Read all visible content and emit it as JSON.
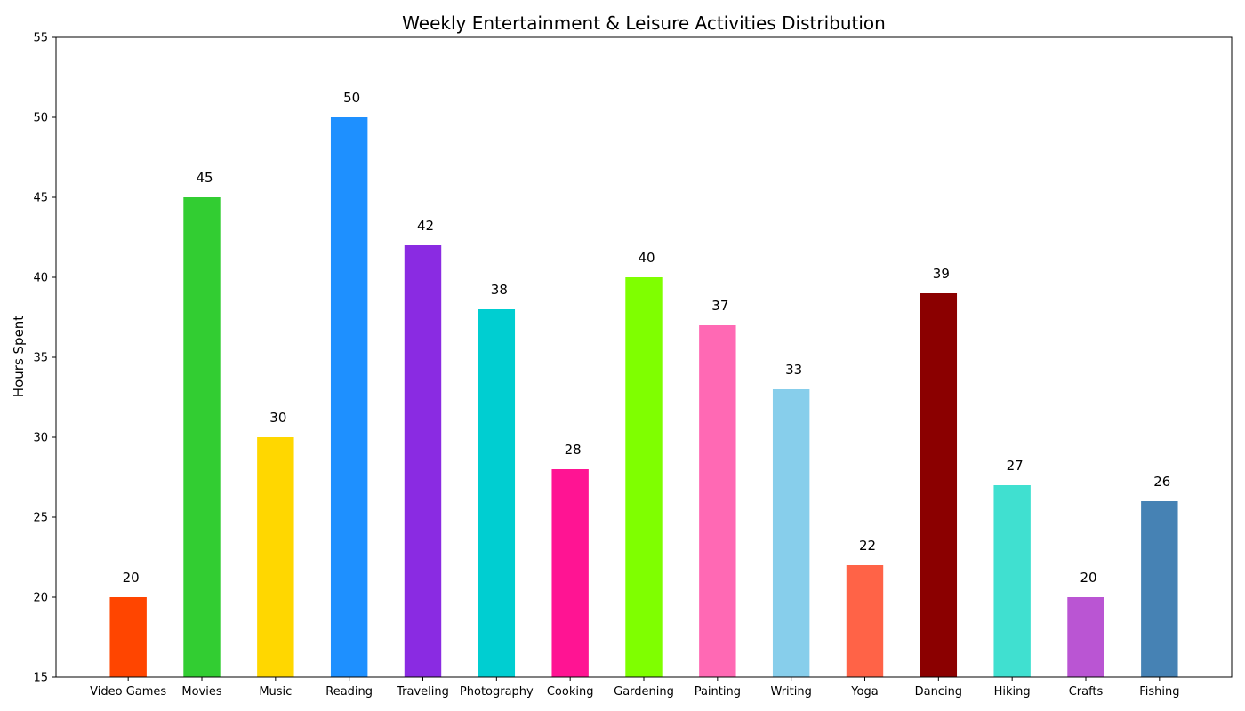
{
  "chart_data": {
    "type": "bar",
    "title": "Weekly Entertainment & Leisure Activities Distribution",
    "xlabel": "",
    "ylabel": "Hours Spent",
    "ylim": [
      15,
      55
    ],
    "yticks": [
      15,
      20,
      25,
      30,
      35,
      40,
      45,
      50,
      55
    ],
    "grid": false,
    "categories": [
      "Video Games",
      "Movies",
      "Music",
      "Reading",
      "Traveling",
      "Photography",
      "Cooking",
      "Gardening",
      "Painting",
      "Writing",
      "Yoga",
      "Dancing",
      "Hiking",
      "Crafts",
      "Fishing"
    ],
    "values": [
      20,
      45,
      30,
      50,
      42,
      38,
      28,
      40,
      37,
      33,
      22,
      39,
      27,
      20,
      26
    ],
    "colors": [
      "#ff4500",
      "#32cd32",
      "#ffd700",
      "#1e90ff",
      "#8a2be2",
      "#00ced1",
      "#ff1493",
      "#7fff00",
      "#ff69b4",
      "#87ceeb",
      "#ff6347",
      "#8b0000",
      "#40e0d0",
      "#ba55d3",
      "#4682b4"
    ],
    "data_labels": [
      "20",
      "45",
      "30",
      "50",
      "42",
      "38",
      "28",
      "40",
      "37",
      "33",
      "22",
      "39",
      "27",
      "20",
      "26"
    ]
  }
}
